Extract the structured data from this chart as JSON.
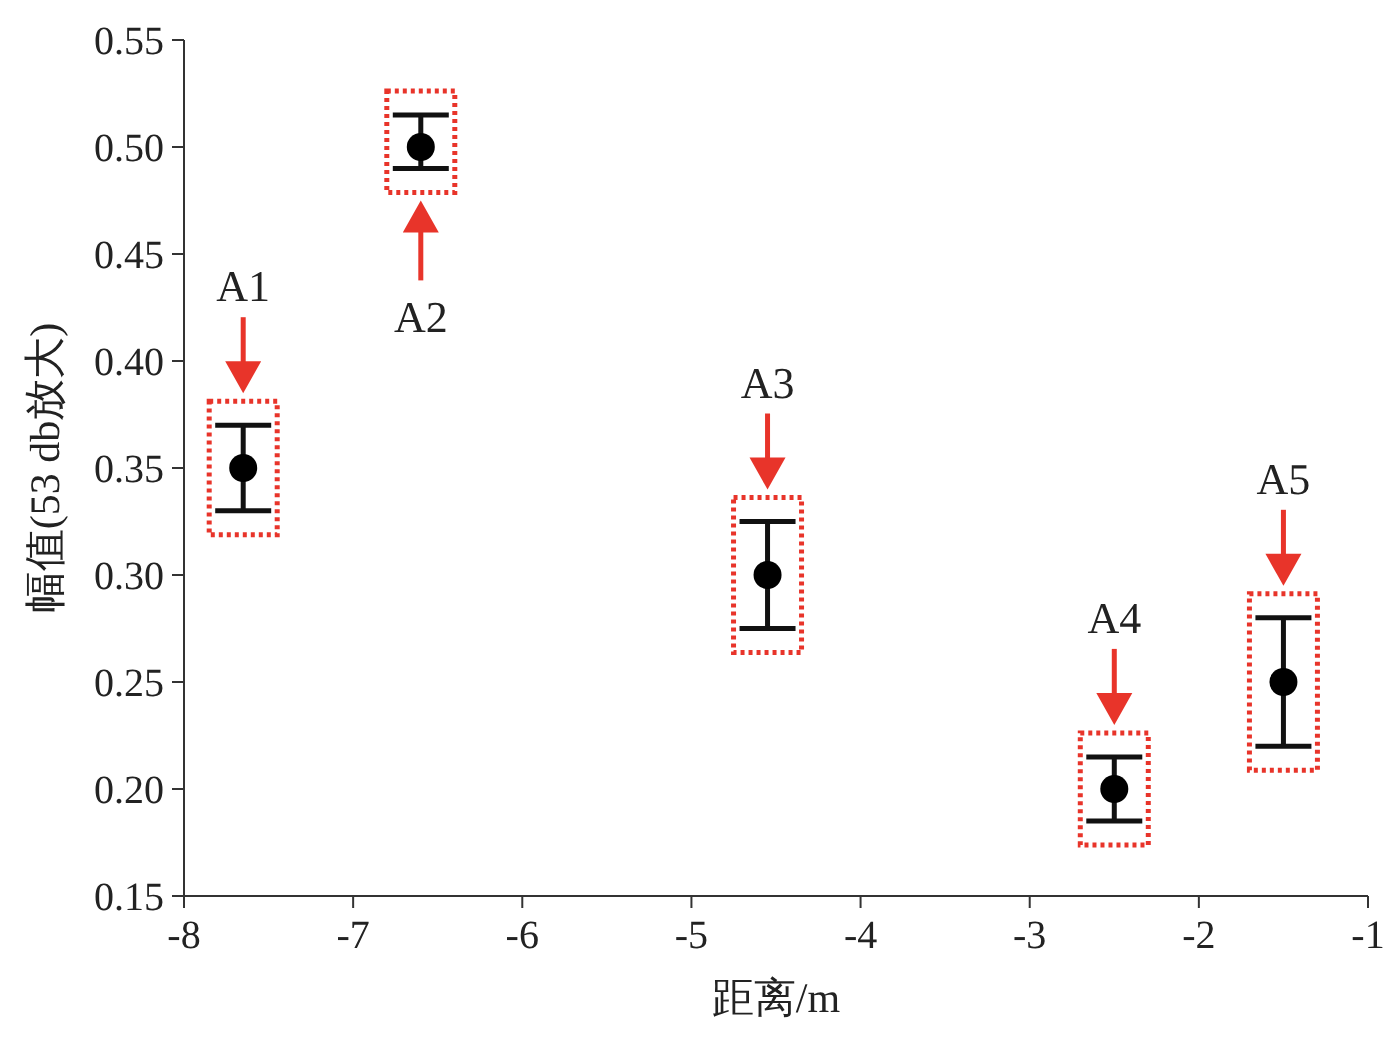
{
  "chart_data": {
    "type": "scatter",
    "xlabel": "距离/m",
    "ylabel": "幅值(53 db放大)",
    "x": [
      -7.65,
      -6.6,
      -4.55,
      -2.5,
      -1.5
    ],
    "series": [
      {
        "color": "#000000",
        "values": [
          0.35,
          0.5,
          0.3,
          0.2,
          0.25
        ],
        "errors": [
          0.02,
          [
            0.49,
            0.515
          ],
          0.025,
          0.015,
          0.03
        ]
      }
    ],
    "xlim": [
      -8,
      -1
    ],
    "xticks": [
      -8,
      -7,
      -6,
      -5,
      -4,
      -3,
      -2,
      -1
    ],
    "ylim": [
      0.15,
      0.55
    ],
    "yticks": [
      0.15,
      {
        "value": 0.2,
        "label": "0.20"
      },
      0.25,
      {
        "value": 0.3,
        "label": "0.30"
      },
      0.35,
      {
        "value": 0.4,
        "label": "0.40"
      },
      0.45,
      {
        "value": 0.5,
        "label": "0.50"
      },
      0.55
    ],
    "marker": "circle",
    "grid": false,
    "legend": false,
    "annotations": [
      "A1",
      "A2",
      "A3",
      "A4",
      "A5"
    ]
  }
}
